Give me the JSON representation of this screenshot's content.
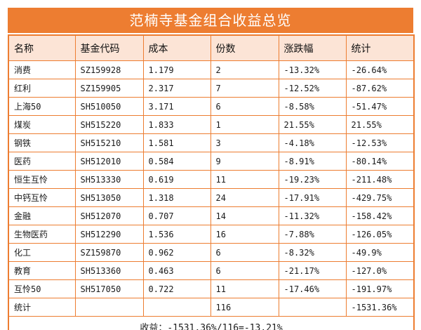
{
  "title": "范楠寺基金组合收益总览",
  "colors": {
    "accent_orange": "#ED7D31",
    "header_bg": "#FCE4D6",
    "title_text": "#FFFFFF",
    "body_text": "#000000",
    "page_bg": "#FFFFFF"
  },
  "chart_data": {
    "type": "table",
    "title": "范楠寺基金组合收益总览",
    "columns": [
      "名称",
      "基金代码",
      "成本",
      "份数",
      "涨跌幅",
      "统计"
    ],
    "rows": [
      {
        "name": "消费",
        "code": "SZ159928",
        "cost": "1.179",
        "shares": "2",
        "change": "-13.32%",
        "total": "-26.64%"
      },
      {
        "name": "红利",
        "code": "SZ159905",
        "cost": "2.317",
        "shares": "7",
        "change": "-12.52%",
        "total": "-87.62%"
      },
      {
        "name": "上海50",
        "code": "SH510050",
        "cost": "3.171",
        "shares": "6",
        "change": "-8.58%",
        "total": "-51.47%"
      },
      {
        "name": "煤炭",
        "code": "SH515220",
        "cost": "1.833",
        "shares": "1",
        "change": "21.55%",
        "total": "21.55%"
      },
      {
        "name": "钢铁",
        "code": "SH515210",
        "cost": "1.581",
        "shares": "3",
        "change": "-4.18%",
        "total": "-12.53%"
      },
      {
        "name": "医药",
        "code": "SH512010",
        "cost": "0.584",
        "shares": "9",
        "change": "-8.91%",
        "total": "-80.14%"
      },
      {
        "name": "恒生互怜",
        "code": "SH513330",
        "cost": "0.619",
        "shares": "11",
        "change": "-19.23%",
        "total": "-211.48%"
      },
      {
        "name": "中钙互怜",
        "code": "SH513050",
        "cost": "1.318",
        "shares": "24",
        "change": "-17.91%",
        "total": "-429.75%"
      },
      {
        "name": "金融",
        "code": "SH512070",
        "cost": "0.707",
        "shares": "14",
        "change": "-11.32%",
        "total": "-158.42%"
      },
      {
        "name": "生物医药",
        "code": "SH512290",
        "cost": "1.536",
        "shares": "16",
        "change": "-7.88%",
        "total": "-126.05%"
      },
      {
        "name": "化工",
        "code": "SZ159870",
        "cost": "0.962",
        "shares": "6",
        "change": "-8.32%",
        "total": "-49.9%"
      },
      {
        "name": "教育",
        "code": "SH513360",
        "cost": "0.463",
        "shares": "6",
        "change": "-21.17%",
        "total": "-127.0%"
      },
      {
        "name": "互怜50",
        "code": "SH517050",
        "cost": "0.722",
        "shares": "11",
        "change": "-17.46%",
        "total": "-191.97%"
      },
      {
        "name": "统计",
        "code": "",
        "cost": "",
        "shares": "116",
        "change": "",
        "total": "-1531.36%"
      }
    ],
    "footer": "收益：-1531.36%/116=-13.21%"
  }
}
